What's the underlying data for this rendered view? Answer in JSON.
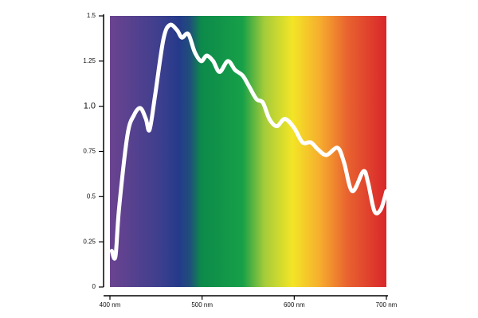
{
  "chart_data": {
    "type": "line",
    "x": [
      402,
      406,
      410,
      419,
      426,
      433,
      439,
      443,
      449,
      458,
      465,
      473,
      478,
      485,
      492,
      499,
      505,
      512,
      519,
      528,
      536,
      544,
      551,
      559,
      566,
      573,
      581,
      590,
      600,
      609,
      618,
      626,
      635,
      647,
      654,
      663,
      675,
      680,
      687,
      694,
      700
    ],
    "y": [
      0.2,
      0.17,
      0.44,
      0.84,
      0.95,
      0.99,
      0.93,
      0.87,
      1.06,
      1.37,
      1.45,
      1.42,
      1.38,
      1.4,
      1.3,
      1.25,
      1.28,
      1.25,
      1.19,
      1.25,
      1.2,
      1.17,
      1.11,
      1.04,
      1.02,
      0.93,
      0.89,
      0.93,
      0.88,
      0.8,
      0.8,
      0.76,
      0.73,
      0.77,
      0.69,
      0.53,
      0.64,
      0.58,
      0.42,
      0.43,
      0.53
    ],
    "color": "#ffffff",
    "xlim": [
      400,
      700
    ],
    "xticks": [
      {
        "value": 400,
        "label": "400 nm"
      },
      {
        "value": 500,
        "label": "500 nm"
      },
      {
        "value": 600,
        "label": "600 nm"
      },
      {
        "value": 700,
        "label": "700 nm"
      }
    ],
    "ylim": [
      0,
      1.5
    ],
    "yticks": [
      0,
      0.25,
      0.5,
      0.75,
      {
        "value": 1,
        "label": "1.0"
      },
      1.25,
      1.5
    ]
  }
}
